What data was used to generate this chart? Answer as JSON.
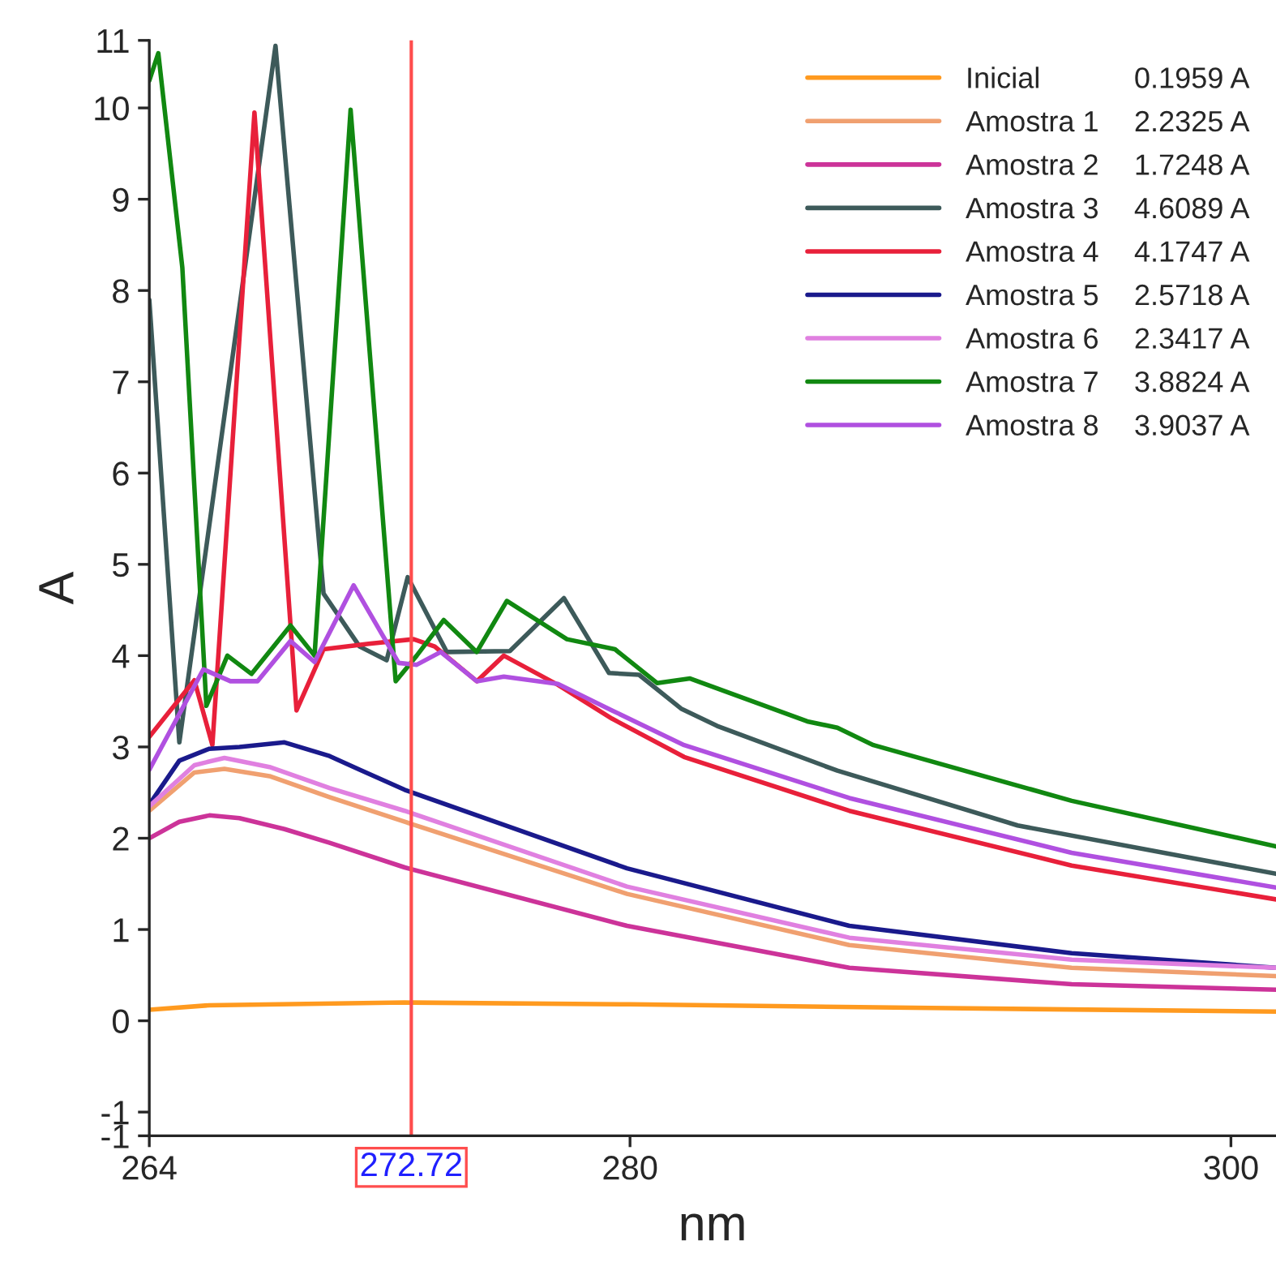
{
  "chart_data": {
    "type": "line",
    "xlabel": "nm",
    "ylabel": "A",
    "xlim": [
      264,
      301.5
    ],
    "xticks": [
      264,
      280,
      300
    ],
    "ylim": [
      -1.26,
      10.74
    ],
    "yticks": [
      {
        "value": -1.26,
        "label": "-1"
      },
      -1,
      0,
      1,
      2,
      3,
      4,
      5,
      6,
      7,
      8,
      9,
      10,
      {
        "value": 10.74,
        "label": "11"
      }
    ],
    "grid": false,
    "legend": "top right",
    "marker": "none",
    "line_style": "solid",
    "ref_lines": [
      {
        "axis": "x",
        "value": 272.72,
        "label": "272.72",
        "color": "#ff4d4d"
      }
    ],
    "annotations": [
      "0.1959 A",
      "2.2325 A",
      "1.7248 A",
      "4.6089 A",
      "4.1747 A",
      "2.5718 A",
      "2.3417 A",
      "3.8824 A",
      "3.9037 A"
    ],
    "series": [
      {
        "name": "Inicial",
        "color": "#ff9a1f",
        "x": [
          264,
          266,
          272.5,
          280,
          290,
          301.5
        ],
        "values": [
          0.12,
          0.17,
          0.2,
          0.18,
          0.14,
          0.1
        ]
      },
      {
        "name": "Amostra 1",
        "color": "#f0a070",
        "x": [
          264,
          265.5,
          266.5,
          268,
          270,
          272.5,
          279.9,
          287.3,
          294.7,
          301.5
        ],
        "values": [
          2.3,
          2.72,
          2.76,
          2.68,
          2.45,
          2.18,
          1.39,
          0.83,
          0.58,
          0.49
        ]
      },
      {
        "name": "Amostra 2",
        "color": "#cc3399",
        "x": [
          264,
          265,
          266,
          267,
          268.5,
          270,
          272.5,
          279.9,
          287.3,
          294.7,
          301.5
        ],
        "values": [
          2.0,
          2.18,
          2.25,
          2.22,
          2.1,
          1.95,
          1.68,
          1.04,
          0.58,
          0.4,
          0.34
        ]
      },
      {
        "name": "Amostra 3",
        "color": "#3d5a5a",
        "x": [
          264,
          265,
          268.2,
          269.8,
          271,
          271.9,
          272.6,
          273.9,
          276,
          277.8,
          279.3,
          280.3,
          281.7,
          282.9,
          286.9,
          292.9,
          301.5
        ],
        "values": [
          7.9,
          3.05,
          10.68,
          4.68,
          4.1,
          3.95,
          4.86,
          4.04,
          4.05,
          4.63,
          3.81,
          3.79,
          3.42,
          3.23,
          2.74,
          2.14,
          1.61
        ]
      },
      {
        "name": "Amostra 4",
        "color": "#e8203a",
        "x": [
          264,
          265.5,
          266.1,
          267.5,
          268.9,
          269.8,
          271.3,
          272.8,
          273.5,
          274.9,
          275.8,
          277.6,
          279.4,
          281.8,
          287.3,
          294.7,
          301.5
        ],
        "values": [
          3.11,
          3.73,
          3.02,
          9.95,
          3.4,
          4.07,
          4.13,
          4.18,
          4.1,
          3.72,
          4.0,
          3.68,
          3.31,
          2.89,
          2.3,
          1.7,
          1.33
        ]
      },
      {
        "name": "Amostra 5",
        "color": "#1a1a8c",
        "x": [
          264,
          265,
          266,
          267,
          268.5,
          270,
          271,
          272.5,
          279.9,
          287.3,
          294.7,
          301.5
        ],
        "values": [
          2.37,
          2.85,
          2.98,
          3.0,
          3.05,
          2.9,
          2.75,
          2.53,
          1.67,
          1.04,
          0.74,
          0.58
        ]
      },
      {
        "name": "Amostra 6",
        "color": "#e080e0",
        "x": [
          264,
          265.5,
          266.5,
          268,
          270,
          272.5,
          279.9,
          287.3,
          294.7,
          301.5
        ],
        "values": [
          2.35,
          2.8,
          2.88,
          2.78,
          2.55,
          2.3,
          1.47,
          0.91,
          0.67,
          0.58
        ]
      },
      {
        "name": "Amostra 7",
        "color": "#118811",
        "x": [
          264,
          264.3,
          265.1,
          265.9,
          266.6,
          267.4,
          268.7,
          269.5,
          270.7,
          272.2,
          272.9,
          273.8,
          274.9,
          275.9,
          277.9,
          279.5,
          280.9,
          282.0,
          285.9,
          286.9,
          288.1,
          294.7,
          301.5
        ],
        "values": [
          10.3,
          10.6,
          8.25,
          3.45,
          4.0,
          3.8,
          4.33,
          4.0,
          9.98,
          3.72,
          4.0,
          4.39,
          4.04,
          4.6,
          4.18,
          4.07,
          3.7,
          3.75,
          3.28,
          3.21,
          3.02,
          2.41,
          1.91
        ]
      },
      {
        "name": "Amostra 8",
        "color": "#b050e0",
        "x": [
          264,
          265.8,
          266.7,
          267.6,
          268.7,
          269.5,
          270.8,
          272.3,
          272.9,
          273.7,
          274.9,
          275.8,
          277.6,
          279.4,
          281.8,
          287.3,
          294.7,
          301.5
        ],
        "values": [
          2.75,
          3.85,
          3.72,
          3.72,
          4.16,
          3.93,
          4.77,
          3.92,
          3.9,
          4.04,
          3.72,
          3.77,
          3.69,
          3.4,
          3.02,
          2.44,
          1.84,
          1.46
        ]
      }
    ]
  }
}
